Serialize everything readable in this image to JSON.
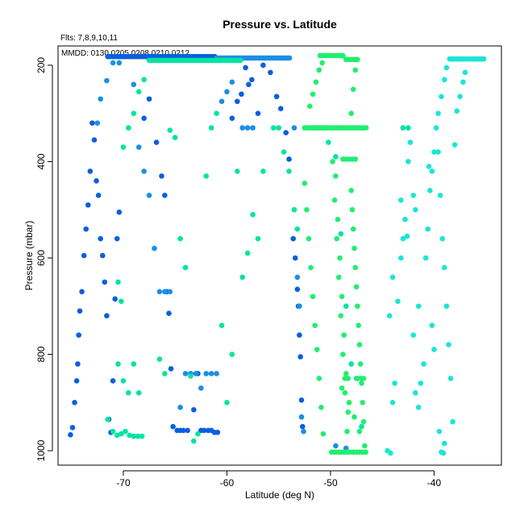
{
  "chart_data": {
    "type": "scatter",
    "title": "Pressure vs. Latitude",
    "annotations": [
      "Flts: 7,8,9,10,11",
      "MMDD: 0130,0205,0208,0210,0212"
    ],
    "xlabel": "Latitude (deg N)",
    "ylabel": "Pressure (mbar)",
    "xlim": [
      -76.3,
      -33.5
    ],
    "ylim": [
      1030,
      160
    ],
    "y_reversed": true,
    "xticks": [
      -70,
      -60,
      -50,
      -40
    ],
    "yticks": [
      200,
      400,
      600,
      800,
      1000
    ],
    "grid": false,
    "colors": [
      "#0a5fe0",
      "#1a8fe6",
      "#00e5a0",
      "#22ee70",
      "#1ae6d6"
    ],
    "series": [
      {
        "color": "#0a5fe0",
        "horizontal_segments": [
          [
            -71.5,
            -61.0,
            182
          ]
        ],
        "points": [
          [
            -75.1,
            967
          ],
          [
            -74.9,
            952
          ],
          [
            -74.7,
            900
          ],
          [
            -74.5,
            855
          ],
          [
            -74.4,
            820
          ],
          [
            -74.3,
            760
          ],
          [
            -74.2,
            710
          ],
          [
            -74.0,
            670
          ],
          [
            -73.8,
            595
          ],
          [
            -73.6,
            540
          ],
          [
            -73.4,
            490
          ],
          [
            -73.2,
            420
          ],
          [
            -73.0,
            320
          ],
          [
            -72.8,
            355
          ],
          [
            -72.6,
            440
          ],
          [
            -72.4,
            470
          ],
          [
            -72.2,
            560
          ],
          [
            -72.0,
            595
          ],
          [
            -71.8,
            650
          ],
          [
            -71.6,
            720
          ],
          [
            -71.4,
            935
          ],
          [
            -71.2,
            962
          ],
          [
            -71.0,
            855
          ],
          [
            -70.8,
            685
          ],
          [
            -70.6,
            560
          ],
          [
            -70.4,
            505
          ],
          [
            -68.0,
            310
          ],
          [
            -67.5,
            270
          ],
          [
            -66.8,
            360
          ],
          [
            -66.3,
            430
          ],
          [
            -66.0,
            470
          ],
          [
            -65.8,
            670
          ],
          [
            -65.6,
            715
          ],
          [
            -65.4,
            830
          ],
          [
            -65.2,
            950
          ],
          [
            -64.8,
            958
          ],
          [
            -64.5,
            958
          ],
          [
            -64.2,
            958
          ],
          [
            -63.8,
            958
          ],
          [
            -63.5,
            840
          ],
          [
            -63.2,
            915
          ],
          [
            -62.8,
            840
          ],
          [
            -62.5,
            958
          ],
          [
            -62.2,
            958
          ],
          [
            -61.8,
            958
          ],
          [
            -61.5,
            958
          ],
          [
            -61.2,
            962
          ],
          [
            -60.9,
            962
          ],
          [
            -59.5,
            310
          ],
          [
            -59.0,
            275
          ],
          [
            -58.6,
            260
          ],
          [
            -58.2,
            205
          ],
          [
            -57.9,
            240
          ],
          [
            -57.6,
            230
          ],
          [
            -57.0,
            300
          ],
          [
            -56.5,
            200
          ],
          [
            -55.8,
            215
          ],
          [
            -55.2,
            265
          ],
          [
            -54.8,
            290
          ],
          [
            -54.3,
            340
          ],
          [
            -54.0,
            395
          ],
          [
            -53.6,
            560
          ],
          [
            -53.4,
            600
          ],
          [
            -53.2,
            665
          ],
          [
            -53.1,
            700
          ],
          [
            -53.0,
            760
          ],
          [
            -52.9,
            805
          ],
          [
            -52.8,
            895
          ],
          [
            -52.7,
            950
          ]
        ]
      },
      {
        "color": "#1a8fe6",
        "horizontal_segments": [
          [
            -61.0,
            -53.8,
            185
          ]
        ],
        "points": [
          [
            -72.5,
            320
          ],
          [
            -72.2,
            270
          ],
          [
            -71.6,
            232
          ],
          [
            -71.0,
            195
          ],
          [
            -70.4,
            195
          ],
          [
            -69.0,
            240
          ],
          [
            -68.5,
            370
          ],
          [
            -68.0,
            420
          ],
          [
            -67.5,
            470
          ],
          [
            -67.0,
            580
          ],
          [
            -66.5,
            670
          ],
          [
            -66.0,
            670
          ],
          [
            -65.5,
            670
          ],
          [
            -64.5,
            910
          ],
          [
            -64.0,
            840
          ],
          [
            -63.5,
            840
          ],
          [
            -63.0,
            840
          ],
          [
            -62.5,
            870
          ],
          [
            -62.0,
            840
          ],
          [
            -61.5,
            840
          ],
          [
            -61.0,
            840
          ],
          [
            -60.5,
            275
          ],
          [
            -60.0,
            255
          ],
          [
            -59.5,
            235
          ],
          [
            -58.5,
            330
          ],
          [
            -58.0,
            330
          ],
          [
            -57.5,
            330
          ],
          [
            -53.5,
            330
          ],
          [
            -53.2,
            640
          ],
          [
            -53.0,
            700
          ],
          [
            -52.8,
            930
          ],
          [
            -52.6,
            960
          ],
          [
            -49.5,
            990
          ],
          [
            -48.5,
            995
          ]
        ]
      },
      {
        "color": "#00e5a0",
        "horizontal_segments": [
          [
            -67.5,
            -58.5,
            190
          ]
        ],
        "points": [
          [
            -71.5,
            935
          ],
          [
            -71.0,
            960
          ],
          [
            -70.6,
            968
          ],
          [
            -70.2,
            965
          ],
          [
            -69.8,
            960
          ],
          [
            -69.4,
            968
          ],
          [
            -69.0,
            970
          ],
          [
            -68.6,
            970
          ],
          [
            -68.2,
            970
          ],
          [
            -70.5,
            820
          ],
          [
            -70.0,
            855
          ],
          [
            -69.5,
            880
          ],
          [
            -69.0,
            820
          ],
          [
            -68.5,
            880
          ],
          [
            -70.5,
            650
          ],
          [
            -70.2,
            690
          ],
          [
            -70.0,
            370
          ],
          [
            -69.5,
            330
          ],
          [
            -69.0,
            300
          ],
          [
            -68.5,
            255
          ],
          [
            -68.0,
            230
          ],
          [
            -66.5,
            810
          ],
          [
            -66.0,
            840
          ],
          [
            -65.5,
            335
          ],
          [
            -65.0,
            350
          ],
          [
            -64.5,
            560
          ],
          [
            -64.0,
            620
          ],
          [
            -63.5,
            845
          ],
          [
            -63.2,
            980
          ],
          [
            -62.8,
            965
          ],
          [
            -62.0,
            430
          ],
          [
            -61.5,
            330
          ],
          [
            -61.0,
            300
          ],
          [
            -60.5,
            740
          ],
          [
            -60.0,
            900
          ],
          [
            -59.5,
            800
          ],
          [
            -59.0,
            420
          ],
          [
            -58.5,
            640
          ],
          [
            -58.0,
            590
          ],
          [
            -57.5,
            510
          ],
          [
            -57.0,
            560
          ],
          [
            -56.5,
            420
          ],
          [
            -55.5,
            330
          ],
          [
            -55.0,
            330
          ],
          [
            -54.5,
            380
          ],
          [
            -54.0,
            420
          ],
          [
            -53.5,
            500
          ],
          [
            -53.2,
            540
          ],
          [
            -51.5,
            330
          ],
          [
            -51.0,
            330
          ],
          [
            -50.5,
            330
          ],
          [
            -50.2,
            360
          ],
          [
            -49.5,
            390
          ],
          [
            -49.0,
            550
          ],
          [
            -48.5,
            700
          ],
          [
            -48.0,
            820
          ],
          [
            -47.5,
            850
          ],
          [
            -47.0,
            950
          ],
          [
            -43.0,
            330
          ],
          [
            -42.5,
            330
          ]
        ]
      },
      {
        "color": "#22ee70",
        "horizontal_segments": [
          [
            -51.0,
            -48.8,
            180
          ],
          [
            -48.5,
            -47.2,
            188
          ],
          [
            -52.5,
            -46.5,
            330
          ]
        ],
        "points": [
          [
            -52.5,
            445
          ],
          [
            -52.3,
            500
          ],
          [
            -52.1,
            560
          ],
          [
            -51.9,
            620
          ],
          [
            -51.7,
            680
          ],
          [
            -51.5,
            740
          ],
          [
            -51.3,
            790
          ],
          [
            -51.1,
            850
          ],
          [
            -50.9,
            910
          ],
          [
            -50.7,
            965
          ],
          [
            -52.0,
            285
          ],
          [
            -51.7,
            260
          ],
          [
            -51.4,
            235
          ],
          [
            -51.1,
            210
          ],
          [
            -50.8,
            195
          ],
          [
            -49.9,
            1003
          ],
          [
            -49.6,
            1003
          ],
          [
            -49.3,
            1003
          ],
          [
            -49.0,
            1003
          ],
          [
            -48.7,
            1003
          ],
          [
            -48.4,
            1003
          ],
          [
            -48.1,
            1003
          ],
          [
            -47.8,
            1003
          ],
          [
            -47.5,
            1003
          ],
          [
            -47.2,
            1003
          ],
          [
            -46.9,
            1003
          ],
          [
            -46.6,
            1003
          ],
          [
            -49.8,
            400
          ],
          [
            -49.6,
            480
          ],
          [
            -49.4,
            560
          ],
          [
            -49.2,
            640
          ],
          [
            -49.0,
            720
          ],
          [
            -48.8,
            800
          ],
          [
            -48.6,
            880
          ],
          [
            -48.4,
            960
          ],
          [
            -49.5,
            430
          ],
          [
            -49.3,
            520
          ],
          [
            -49.1,
            600
          ],
          [
            -48.9,
            680
          ],
          [
            -48.7,
            760
          ],
          [
            -48.5,
            840
          ],
          [
            -48.3,
            920
          ],
          [
            -48.8,
            395
          ],
          [
            -48.5,
            395
          ],
          [
            -48.2,
            395
          ],
          [
            -47.9,
            395
          ],
          [
            -47.6,
            395
          ],
          [
            -48.0,
            460
          ],
          [
            -47.8,
            540
          ],
          [
            -47.6,
            620
          ],
          [
            -47.4,
            700
          ],
          [
            -47.2,
            780
          ],
          [
            -47.0,
            860
          ],
          [
            -46.8,
            940
          ],
          [
            -47.9,
            500
          ],
          [
            -47.7,
            580
          ],
          [
            -47.5,
            660
          ],
          [
            -47.3,
            740
          ],
          [
            -47.1,
            820
          ],
          [
            -46.9,
            900
          ],
          [
            -48.0,
            300
          ],
          [
            -47.8,
            250
          ],
          [
            -47.6,
            210
          ],
          [
            -47.4,
            850
          ],
          [
            -47.1,
            850
          ],
          [
            -46.8,
            850
          ],
          [
            -48.6,
            850
          ],
          [
            -48.3,
            850
          ],
          [
            -48.9,
            870
          ],
          [
            -48.2,
            900
          ],
          [
            -47.7,
            930
          ],
          [
            -47.2,
            960
          ],
          [
            -46.7,
            990
          ]
        ]
      },
      {
        "color": "#1ae6d6",
        "horizontal_segments": [
          [
            -38.5,
            -35.2,
            187
          ]
        ],
        "points": [
          [
            -44.5,
            1000
          ],
          [
            -44.2,
            1005
          ],
          [
            -44.0,
            900
          ],
          [
            -43.8,
            860
          ],
          [
            -44.3,
            720
          ],
          [
            -44.0,
            640
          ],
          [
            -43.5,
            690
          ],
          [
            -43.2,
            600
          ],
          [
            -43.0,
            560
          ],
          [
            -42.8,
            520
          ],
          [
            -42.5,
            400
          ],
          [
            -42.3,
            360
          ],
          [
            -42.0,
            760
          ],
          [
            -41.8,
            880
          ],
          [
            -41.5,
            910
          ],
          [
            -41.3,
            860
          ],
          [
            -41.0,
            820
          ],
          [
            -40.8,
            600
          ],
          [
            -40.6,
            540
          ],
          [
            -40.4,
            460
          ],
          [
            -40.2,
            420
          ],
          [
            -40.0,
            380
          ],
          [
            -39.8,
            330
          ],
          [
            -39.6,
            380
          ],
          [
            -39.4,
            470
          ],
          [
            -39.2,
            560
          ],
          [
            -39.0,
            620
          ],
          [
            -38.8,
            700
          ],
          [
            -38.6,
            780
          ],
          [
            -38.4,
            850
          ],
          [
            -38.2,
            940
          ],
          [
            -39.5,
            960
          ],
          [
            -39.3,
            1003
          ],
          [
            -39.1,
            1005
          ],
          [
            -39.0,
            985
          ],
          [
            -40.0,
            790
          ],
          [
            -40.2,
            740
          ],
          [
            -38.0,
            365
          ],
          [
            -37.8,
            295
          ],
          [
            -37.5,
            265
          ],
          [
            -37.2,
            235
          ],
          [
            -37.0,
            215
          ],
          [
            -38.8,
            205
          ],
          [
            -39.0,
            230
          ],
          [
            -39.3,
            265
          ],
          [
            -39.6,
            300
          ],
          [
            -40.5,
            410
          ],
          [
            -41.5,
            700
          ],
          [
            -42.6,
            555
          ],
          [
            -41.8,
            500
          ],
          [
            -43.2,
            480
          ],
          [
            -42.0,
            470
          ]
        ]
      }
    ]
  }
}
